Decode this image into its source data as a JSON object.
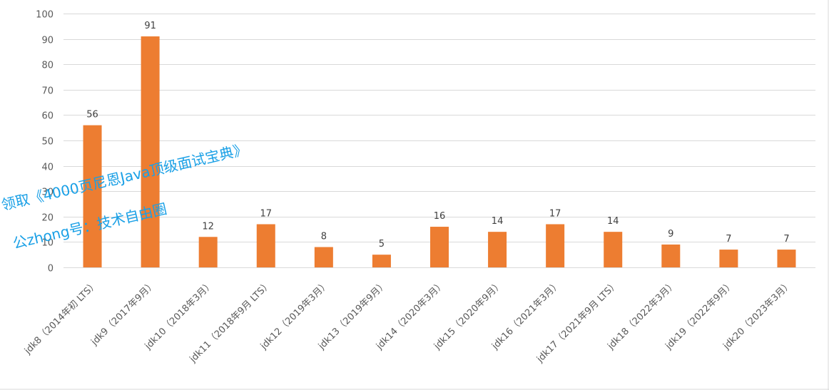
{
  "chart_data": {
    "type": "bar",
    "title": "",
    "xlabel": "",
    "ylabel": "",
    "ylim": [
      0,
      100
    ],
    "yticks": [
      0,
      10,
      20,
      30,
      40,
      50,
      60,
      70,
      80,
      90,
      100
    ],
    "grid": true,
    "legend": "none",
    "bar_color": "#ed7d31",
    "categories": [
      "jdk8（2014年初 LTS）",
      "jdk9（2017年9月）",
      "jdk10（2018年3月）",
      "jdk11（2018年9月 LTS）",
      "jdk12（2019年3月）",
      "jdk13（2019年9月）",
      "jdk14（2020年3月）",
      "jdk15（2020年9月）",
      "jdk16（2021年3月）",
      "jdk17（2021年9月 LTS）",
      "jdk18（2022年3月）",
      "jdk19（2022年9月）",
      "jdk20（2023年3月）"
    ],
    "values": [
      56,
      91,
      12,
      17,
      8,
      5,
      16,
      14,
      17,
      14,
      9,
      7,
      7
    ]
  },
  "watermark": {
    "line1": "领取《4000页尼恩Java顶级面试宝典》",
    "line2": "公zhong号：技术自由圈",
    "color": "#1aa0e6"
  }
}
